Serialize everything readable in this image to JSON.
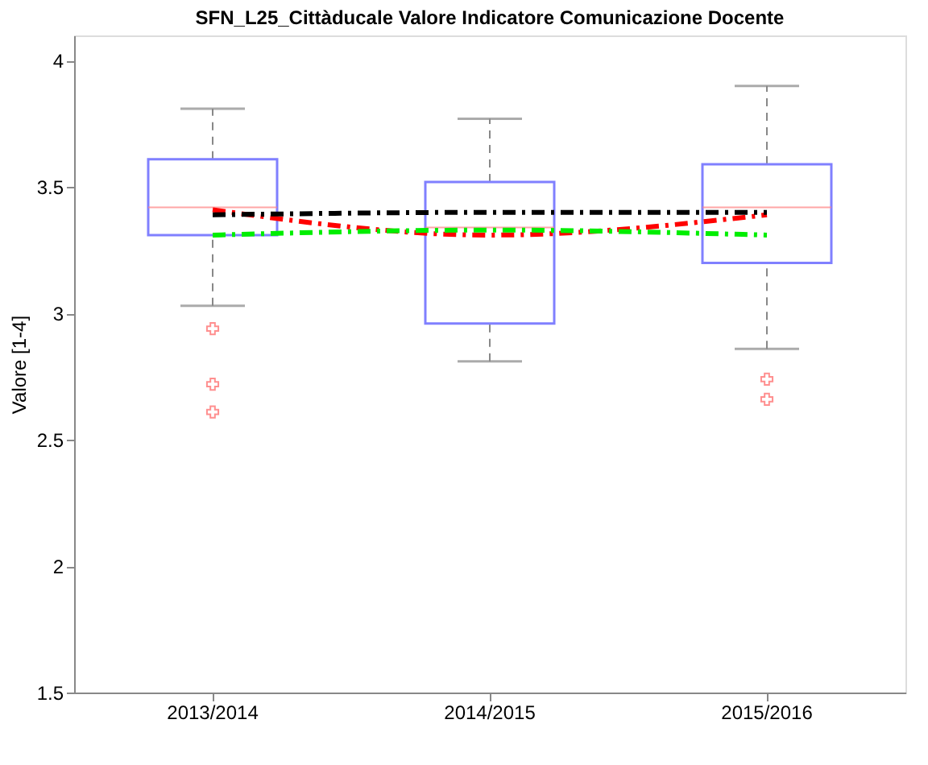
{
  "chart_data": {
    "type": "box",
    "title": "SFN_L25_Cittàducale Valore Indicatore Comunicazione Docente",
    "ylabel": "Valore [1-4]",
    "categories": [
      "2013/2014",
      "2014/2015",
      "2015/2016"
    ],
    "boxes": [
      {
        "low": 3.03,
        "q1": 3.31,
        "median": 3.42,
        "q3": 3.61,
        "high": 3.81,
        "outliers": [
          2.94,
          2.72,
          2.61
        ]
      },
      {
        "low": 2.81,
        "q1": 2.96,
        "median": 3.34,
        "q3": 3.52,
        "high": 3.77
      },
      {
        "low": 2.86,
        "q1": 3.2,
        "median": 3.42,
        "q3": 3.59,
        "high": 3.9,
        "outliers": [
          2.74,
          2.66
        ]
      }
    ],
    "series": [
      {
        "type": "line",
        "color": "#ff0000",
        "values": [
          3.41,
          3.31,
          3.39
        ],
        "line_style": "dashed"
      },
      {
        "type": "line",
        "color": "#00ee00",
        "values": [
          3.31,
          3.33,
          3.31
        ],
        "line_style": "dashed"
      },
      {
        "type": "line",
        "color": "#000000",
        "values": [
          3.39,
          3.4,
          3.4
        ],
        "line_style": "dashed"
      }
    ],
    "ylim": [
      1.5,
      4.1
    ],
    "yticks": [
      1.5,
      2,
      2.5,
      3,
      3.5,
      4
    ],
    "grid": false
  }
}
